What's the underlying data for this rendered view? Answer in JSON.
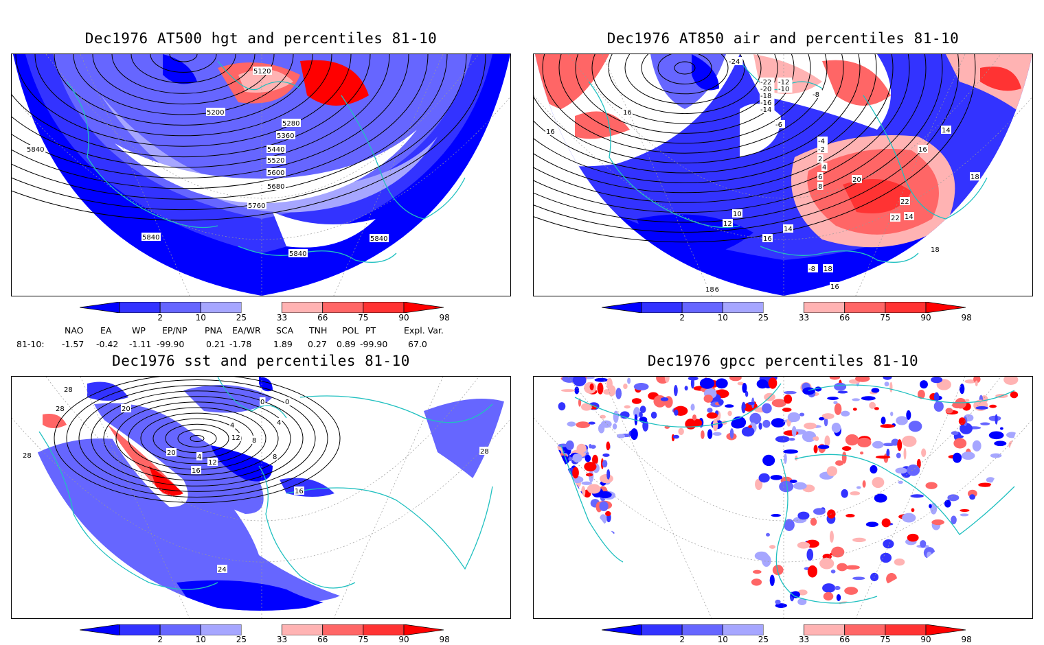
{
  "panels": [
    {
      "id": "hgt",
      "title": "Dec1976 AT500 hgt and percentiles 81-10",
      "contour_labels": [
        "5120",
        "5200",
        "5280",
        "5360",
        "5440",
        "5520",
        "5600",
        "5680",
        "5760",
        "5840",
        "5840",
        "5840",
        "5840"
      ]
    },
    {
      "id": "air",
      "title": "Dec1976 AT850 air and percentiles 81-10",
      "contour_labels": [
        "-24",
        "-22",
        "-20",
        "-18",
        "-16",
        "-14",
        "-12",
        "-10",
        "-8",
        "-6",
        "-4",
        "-2",
        "2",
        "4",
        "6",
        "8",
        "10",
        "12",
        "14",
        "16",
        "18",
        "20",
        "22",
        "-6",
        "-8",
        "16",
        "16",
        "14",
        "16",
        "18",
        "18",
        "22",
        "14",
        "16",
        "18"
      ]
    },
    {
      "id": "sst",
      "title": "Dec1976 sst and percentiles 81-10",
      "contour_labels": [
        "28",
        "28",
        "28",
        "28",
        "20",
        "0",
        "4",
        "0",
        "8",
        "4",
        "12",
        "20",
        "4",
        "16",
        "16",
        "24",
        "8",
        "12"
      ]
    },
    {
      "id": "gpcc",
      "title": "Dec1976 gpcc percentiles 81-10",
      "contour_labels": []
    }
  ],
  "colorbar": {
    "labels": [
      "2",
      "10",
      "25",
      "33",
      "66",
      "75",
      "90",
      "98"
    ],
    "colors": [
      "#0000ff",
      "#3333ff",
      "#6666ff",
      "#a6a6ff",
      "#ffffff",
      "#ffb3b3",
      "#ff6666",
      "#ff3333",
      "#ff0000"
    ]
  },
  "indices": {
    "headers": [
      "NAO",
      "EA",
      "WP",
      "EP/NP",
      "PNA",
      "EA/WR",
      "SCA",
      "TNH",
      "POL",
      "PT",
      "Expl. Var."
    ],
    "row_label": "81-10:",
    "values": [
      "-1.57",
      "-0.42",
      "-1.11",
      "-99.90",
      "0.21",
      "-1.78",
      "1.89",
      "0.27",
      "0.89",
      "-99.90",
      "67.0"
    ]
  },
  "map_colors": {
    "cold_strong": "#0000ff",
    "cold_mid": "#3333ff",
    "cold_light": "#6666ff",
    "cold_pale": "#a6a6ff",
    "warm_pale": "#ffb3b3",
    "warm_mid": "#ff6666",
    "warm_strong": "#ff0000",
    "coast": "#20c0c0",
    "contour": "#000000"
  }
}
